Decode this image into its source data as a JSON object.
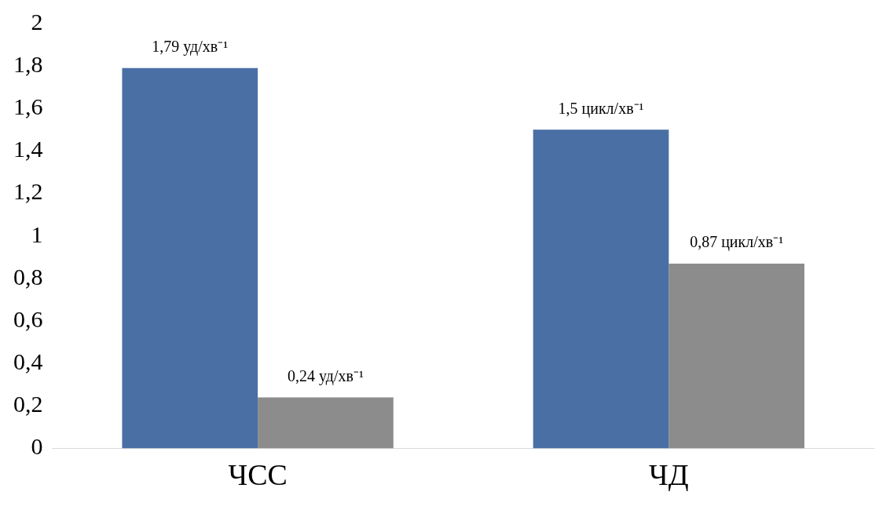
{
  "chart_data": {
    "type": "bar",
    "categories": [
      "ЧСС",
      "ЧД"
    ],
    "series": [
      {
        "color": "#4a6fa5",
        "values": [
          1.79,
          1.5
        ],
        "value_labels": [
          "1,79 уд/хв⁻¹",
          "1,5 цикл/хв⁻¹"
        ]
      },
      {
        "color": "#8c8c8c",
        "values": [
          0.24,
          0.87
        ],
        "value_labels": [
          "0,24 уд/хв⁻¹",
          "0,87 цикл/хв⁻¹"
        ]
      }
    ],
    "ylim": [
      0,
      2
    ],
    "yticks": [
      0,
      {
        "value": 0.2,
        "label": "0,2"
      },
      {
        "value": 0.4,
        "label": "0,4"
      },
      {
        "value": 0.6,
        "label": "0,6"
      },
      {
        "value": 0.8,
        "label": "0,8"
      },
      1,
      {
        "value": 1.2,
        "label": "1,2"
      },
      {
        "value": 1.4,
        "label": "1,4"
      },
      {
        "value": 1.6,
        "label": "1,6"
      },
      {
        "value": 1.8,
        "label": "1,8"
      },
      2
    ],
    "grid": false,
    "legend": false
  }
}
